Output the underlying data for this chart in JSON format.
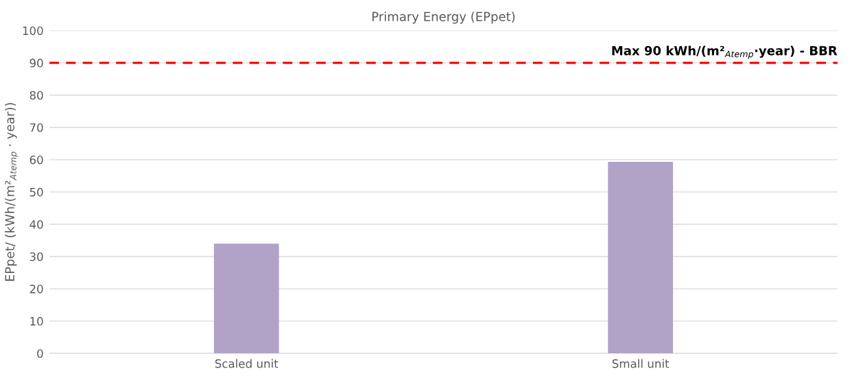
{
  "chart_data": {
    "type": "bar",
    "title": "Primary Energy (EPpet)",
    "ylabel": "EPpet/ (kWh/(m²$_{Atemp}$ · year))",
    "categories": [
      "Scaled unit",
      "Small unit"
    ],
    "values": [
      34,
      59.3
    ],
    "color": "#b1a2c8",
    "ylim": [
      0,
      100
    ],
    "yticks": [
      0,
      10,
      20,
      30,
      40,
      50,
      60,
      70,
      80,
      90,
      100
    ],
    "grid": "y",
    "ref_lines": [
      {
        "axis": "y",
        "value": 90,
        "label": "Max 90 kWh/(m²$_{Atemp}$·year) - BBR",
        "color": "#ff0000",
        "line_style": "dashed"
      }
    ]
  }
}
